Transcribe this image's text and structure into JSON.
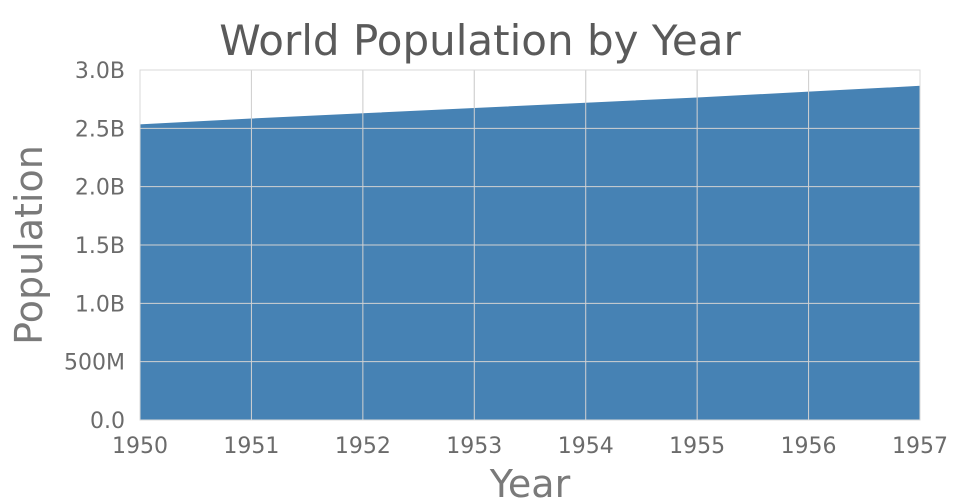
{
  "chart_data": {
    "type": "area",
    "title": "World Population by Year",
    "xlabel": "Year",
    "ylabel": "Population",
    "x": [
      "1950",
      "1951",
      "1952",
      "1953",
      "1954",
      "1955",
      "1956",
      "1957"
    ],
    "series": [
      {
        "values": [
          2530000000,
          2580000000,
          2625000000,
          2670000000,
          2715000000,
          2760000000,
          2810000000,
          2860000000
        ]
      }
    ],
    "x_ticks": [
      "1950",
      "1951",
      "1952",
      "1953",
      "1954",
      "1955",
      "1956",
      "1957"
    ],
    "y_ticks": [
      {
        "value": 0,
        "label": "0.0"
      },
      {
        "value": 500000000,
        "label": "500M"
      },
      {
        "value": 1000000000,
        "label": "1.0B"
      },
      {
        "value": 1500000000,
        "label": "1.5B"
      },
      {
        "value": 2000000000,
        "label": "2.0B"
      },
      {
        "value": 2500000000,
        "label": "2.5B"
      },
      {
        "value": 3000000000,
        "label": "3.0B"
      }
    ],
    "ylim": [
      0,
      3000000000
    ],
    "grid": true,
    "legend": "none",
    "colors": {
      "fill": "#4682b4",
      "line": "#4682b4"
    }
  }
}
